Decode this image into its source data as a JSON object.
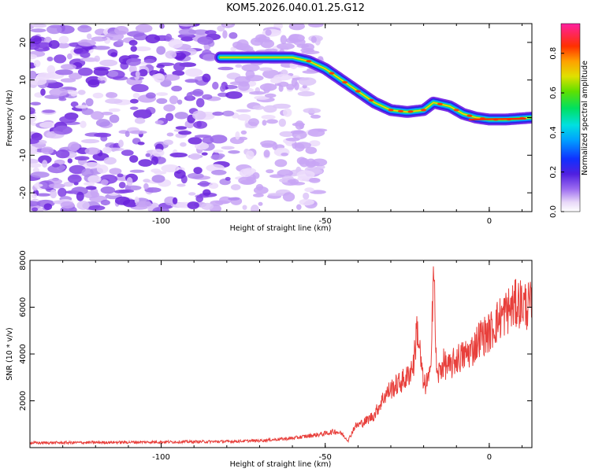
{
  "title": "KOM5.2026.040.01.25.G12",
  "chart_data": [
    {
      "type": "heatmap",
      "xlabel": "Height of straight line (km)",
      "ylabel": "Frequency (Hz)",
      "xlim": [
        -140,
        13
      ],
      "ylim": [
        -25,
        25
      ],
      "xticks": [
        -100,
        -50,
        0
      ],
      "yticks": [
        -20,
        -10,
        0,
        10,
        20
      ],
      "ridge": {
        "description_points_x": [
          -80,
          -65,
          -60,
          -55,
          -50,
          -45,
          -40,
          -35,
          -30,
          -25,
          -20,
          -17,
          -12,
          -8,
          -4,
          0,
          5,
          13
        ],
        "description_points_y": [
          16,
          16,
          16,
          15,
          13,
          10,
          7,
          4,
          2,
          1.5,
          2,
          4,
          3,
          1,
          0,
          -0.5,
          -0.5,
          0
        ]
      },
      "colorbar": {
        "label": "Normalized spectral amplitude",
        "range": [
          0.0,
          0.95
        ],
        "ticks": [
          "0.0",
          "0.2",
          "0.4",
          "0.6",
          "0.8"
        ]
      }
    },
    {
      "type": "line",
      "xlabel": "Height of straight line (km)",
      "ylabel": "SNR (10 * v/v)",
      "xlim": [
        -140,
        13
      ],
      "ylim": [
        0,
        8000
      ],
      "xticks": [
        -100,
        -50,
        0
      ],
      "yticks": [
        2000,
        4000,
        6000,
        8000
      ],
      "series": [
        {
          "name": "SNR",
          "color": "#e8403c",
          "x": [
            -140,
            -120,
            -100,
            -80,
            -70,
            -60,
            -55,
            -50,
            -47,
            -45,
            -43,
            -41,
            -38,
            -35,
            -32,
            -30,
            -28,
            -25,
            -23,
            -22,
            -20,
            -18,
            -17,
            -16,
            -14,
            -12,
            -10,
            -8,
            -5,
            -3,
            0,
            3,
            6,
            9,
            13
          ],
          "y": [
            200,
            220,
            240,
            260,
            300,
            400,
            500,
            600,
            700,
            600,
            300,
            900,
            1100,
            1400,
            2200,
            2500,
            2700,
            3000,
            3600,
            5200,
            2600,
            3000,
            7800,
            3000,
            3600,
            3400,
            3800,
            3900,
            4200,
            4700,
            4900,
            5500,
            5900,
            6200,
            6000
          ]
        }
      ]
    }
  ]
}
